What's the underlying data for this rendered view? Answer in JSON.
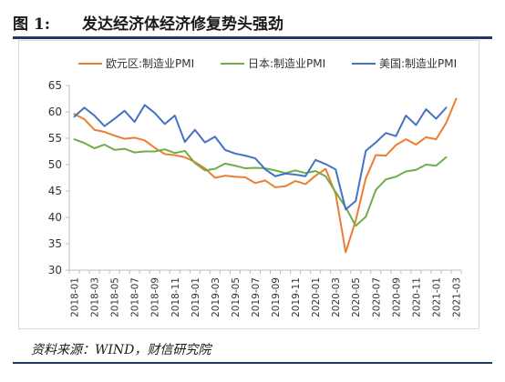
{
  "figure": {
    "label": "图 1:",
    "title": "发达经济体经济修复势头强劲",
    "source": "资料来源：WIND，财信研究院"
  },
  "colors": {
    "eurozone": "#ed7d31",
    "japan": "#70ad47",
    "us": "#4472c4",
    "rule": "#1f3864",
    "axis": "#bfbfbf"
  },
  "chart_data": {
    "type": "line",
    "ylim": [
      30,
      65
    ],
    "yticks": [
      30,
      35,
      40,
      45,
      50,
      55,
      60,
      65
    ],
    "grid": false,
    "legend_position": "top",
    "x": [
      "2018-01",
      "2018-02",
      "2018-03",
      "2018-04",
      "2018-05",
      "2018-06",
      "2018-07",
      "2018-08",
      "2018-09",
      "2018-10",
      "2018-11",
      "2018-12",
      "2019-01",
      "2019-02",
      "2019-03",
      "2019-04",
      "2019-05",
      "2019-06",
      "2019-07",
      "2019-08",
      "2019-09",
      "2019-10",
      "2019-11",
      "2019-12",
      "2020-01",
      "2020-02",
      "2020-03",
      "2020-04",
      "2020-05",
      "2020-06",
      "2020-07",
      "2020-08",
      "2020-09",
      "2020-10",
      "2020-11",
      "2020-12",
      "2021-01",
      "2021-02",
      "2021-03"
    ],
    "xtick_labels": [
      "2018-01",
      "2018-03",
      "2018-05",
      "2018-07",
      "2018-09",
      "2018-11",
      "2019-01",
      "2019-03",
      "2019-05",
      "2019-07",
      "2019-09",
      "2019-11",
      "2020-01",
      "2020-03",
      "2020-05",
      "2020-07",
      "2020-09",
      "2020-11",
      "2021-01",
      "2021-03"
    ],
    "series": [
      {
        "name": "欧元区:制造业PMI",
        "color_key": "eurozone",
        "values": [
          59.6,
          58.6,
          56.6,
          56.2,
          55.5,
          54.9,
          55.1,
          54.6,
          53.2,
          52.0,
          51.8,
          51.4,
          50.5,
          49.3,
          47.5,
          47.9,
          47.7,
          47.6,
          46.5,
          47.0,
          45.7,
          45.9,
          46.9,
          46.3,
          47.9,
          49.2,
          44.5,
          33.4,
          39.4,
          47.4,
          51.8,
          51.7,
          53.7,
          54.8,
          53.8,
          55.2,
          54.8,
          57.9,
          62.5
        ]
      },
      {
        "name": "日本:制造业PMI",
        "color_key": "japan",
        "values": [
          54.8,
          54.1,
          53.1,
          53.8,
          52.8,
          53.0,
          52.3,
          52.5,
          52.5,
          52.9,
          52.2,
          52.6,
          50.3,
          48.9,
          49.2,
          50.2,
          49.8,
          49.3,
          49.4,
          49.3,
          48.9,
          48.4,
          48.9,
          48.4,
          48.8,
          47.8,
          44.8,
          41.9,
          38.4,
          40.1,
          45.2,
          47.2,
          47.7,
          48.7,
          49.0,
          50.0,
          49.8,
          51.4,
          null
        ]
      },
      {
        "name": "美国:制造业PMI",
        "color_key": "us",
        "values": [
          59.1,
          60.8,
          59.3,
          57.3,
          58.7,
          60.2,
          58.1,
          61.3,
          59.8,
          57.7,
          59.3,
          54.3,
          56.6,
          54.2,
          55.3,
          52.8,
          52.1,
          51.7,
          51.2,
          49.1,
          47.8,
          48.3,
          48.1,
          47.8,
          50.9,
          50.1,
          49.1,
          41.5,
          43.1,
          52.6,
          54.2,
          56.0,
          55.4,
          59.3,
          57.5,
          60.5,
          58.7,
          60.8,
          null
        ]
      }
    ]
  }
}
